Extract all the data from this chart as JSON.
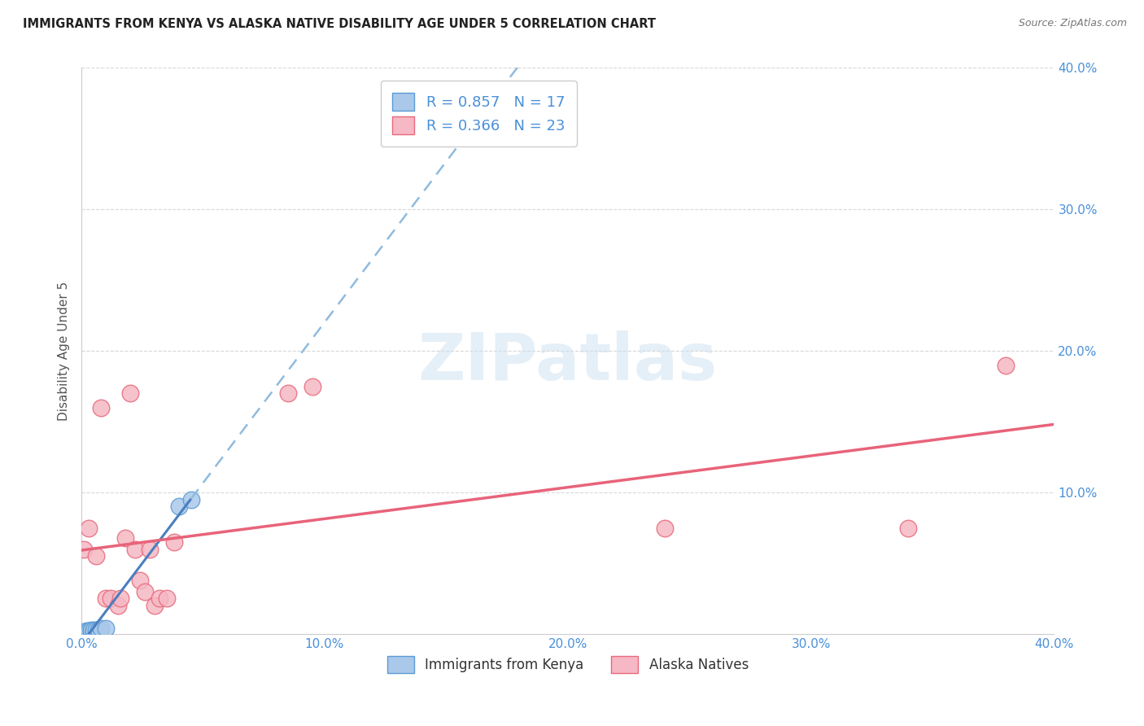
{
  "title": "IMMIGRANTS FROM KENYA VS ALASKA NATIVE DISABILITY AGE UNDER 5 CORRELATION CHART",
  "source": "Source: ZipAtlas.com",
  "ylabel": "Disability Age Under 5",
  "xlim": [
    0.0,
    0.4
  ],
  "ylim": [
    0.0,
    0.4
  ],
  "xticks": [
    0.0,
    0.1,
    0.2,
    0.3,
    0.4
  ],
  "yticks": [
    0.1,
    0.2,
    0.3,
    0.4
  ],
  "xticklabels": [
    "0.0%",
    "10.0%",
    "20.0%",
    "30.0%",
    "40.0%"
  ],
  "yticklabels": [
    "10.0%",
    "20.0%",
    "30.0%",
    "40.0%"
  ],
  "blue_scatter": [
    [
      0.0005,
      0.001
    ],
    [
      0.001,
      0.001
    ],
    [
      0.0015,
      0.001
    ],
    [
      0.002,
      0.001
    ],
    [
      0.002,
      0.002
    ],
    [
      0.003,
      0.001
    ],
    [
      0.003,
      0.002
    ],
    [
      0.004,
      0.002
    ],
    [
      0.004,
      0.003
    ],
    [
      0.005,
      0.002
    ],
    [
      0.005,
      0.003
    ],
    [
      0.006,
      0.003
    ],
    [
      0.007,
      0.003
    ],
    [
      0.008,
      0.004
    ],
    [
      0.01,
      0.004
    ],
    [
      0.04,
      0.09
    ],
    [
      0.045,
      0.095
    ]
  ],
  "pink_scatter": [
    [
      0.001,
      0.06
    ],
    [
      0.003,
      0.075
    ],
    [
      0.006,
      0.055
    ],
    [
      0.008,
      0.16
    ],
    [
      0.01,
      0.025
    ],
    [
      0.012,
      0.025
    ],
    [
      0.015,
      0.02
    ],
    [
      0.016,
      0.025
    ],
    [
      0.018,
      0.068
    ],
    [
      0.02,
      0.17
    ],
    [
      0.022,
      0.06
    ],
    [
      0.024,
      0.038
    ],
    [
      0.026,
      0.03
    ],
    [
      0.028,
      0.06
    ],
    [
      0.03,
      0.02
    ],
    [
      0.032,
      0.025
    ],
    [
      0.035,
      0.025
    ],
    [
      0.038,
      0.065
    ],
    [
      0.085,
      0.17
    ],
    [
      0.24,
      0.075
    ],
    [
      0.34,
      0.075
    ],
    [
      0.38,
      0.19
    ],
    [
      0.095,
      0.175
    ]
  ],
  "blue_R": 0.857,
  "blue_N": 17,
  "pink_R": 0.366,
  "pink_N": 23,
  "blue_scatter_color": "#aac8ea",
  "blue_scatter_edge": "#5b9bd5",
  "pink_scatter_color": "#f5b8c4",
  "pink_scatter_edge": "#e8697c",
  "blue_line_color": "#4a7fbe",
  "pink_line_color": "#e8637a",
  "blue_dash_color": "#90bbdd",
  "watermark_text": "ZIPatlas",
  "legend_label_blue": "Immigrants from Kenya",
  "legend_label_pink": "Alaska Natives",
  "background_color": "#ffffff",
  "grid_color": "#d8d8d8"
}
